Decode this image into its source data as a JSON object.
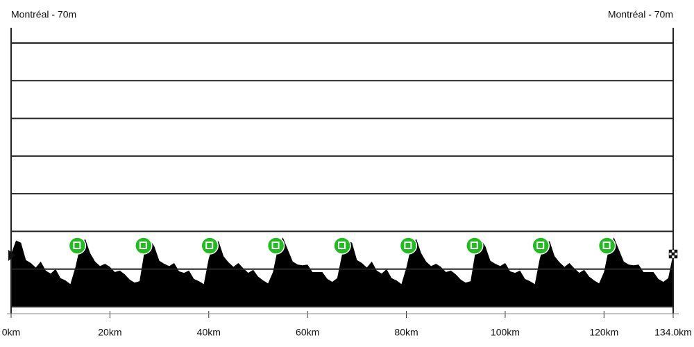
{
  "chart_data": {
    "type": "area",
    "title_left": "Montréal - 70m",
    "title_right": "Montréal - 70m",
    "color": "#000000",
    "marker_color": "#22bb22",
    "x": [
      0,
      1,
      2,
      3,
      4,
      5,
      6,
      7,
      8,
      9,
      10,
      11,
      12,
      13,
      14,
      15,
      16,
      17,
      18,
      19,
      20,
      21,
      22,
      23,
      24,
      25,
      26,
      27,
      28,
      29,
      30,
      31,
      32,
      33,
      34,
      35,
      36,
      37,
      38,
      39,
      40,
      41,
      42,
      43,
      44,
      45,
      46,
      47,
      48,
      49,
      50,
      51,
      52,
      53,
      54,
      55,
      56,
      57,
      58,
      59,
      60,
      61,
      62,
      63,
      64,
      65,
      66,
      67,
      68,
      69,
      70,
      71,
      72,
      73,
      74,
      75,
      76,
      77,
      78,
      79,
      80,
      81,
      82,
      83,
      84,
      85,
      86,
      87,
      88,
      89,
      90,
      91,
      92,
      93,
      94,
      95,
      96,
      97,
      98,
      99,
      100,
      101,
      102,
      103,
      104,
      105,
      106,
      107,
      108,
      109,
      110,
      111,
      112,
      113,
      114,
      115,
      116,
      117,
      118,
      119,
      120,
      121,
      122,
      123,
      124,
      125,
      126,
      127,
      128,
      129,
      130,
      131,
      132,
      133,
      134
    ],
    "values": [
      70,
      88,
      85,
      62,
      58,
      52,
      60,
      48,
      44,
      50,
      38,
      35,
      30,
      52,
      81,
      90,
      71,
      60,
      54,
      57,
      53,
      46,
      48,
      43,
      36,
      32,
      34,
      74,
      90,
      80,
      61,
      57,
      54,
      58,
      47,
      45,
      48,
      37,
      34,
      30,
      64,
      85,
      87,
      67,
      59,
      53,
      58,
      51,
      45,
      49,
      40,
      35,
      31,
      46,
      78,
      92,
      76,
      60,
      56,
      55,
      56,
      46,
      46,
      46,
      37,
      33,
      38,
      70,
      88,
      85,
      62,
      58,
      52,
      60,
      48,
      44,
      50,
      38,
      35,
      30,
      52,
      81,
      90,
      71,
      60,
      54,
      57,
      53,
      46,
      48,
      43,
      36,
      32,
      34,
      74,
      90,
      80,
      61,
      57,
      54,
      58,
      47,
      45,
      48,
      37,
      34,
      30,
      64,
      85,
      87,
      67,
      59,
      53,
      58,
      51,
      45,
      49,
      40,
      35,
      31,
      46,
      78,
      92,
      76,
      60,
      56,
      55,
      56,
      46,
      46,
      46,
      37,
      33,
      38,
      70
    ],
    "lap_markers": [
      13.4,
      26.8,
      40.2,
      53.6,
      67.0,
      80.4,
      93.8,
      107.2,
      120.6
    ],
    "xlim": [
      0,
      134
    ],
    "xticks": [
      {
        "value": 0,
        "label": "0km"
      },
      {
        "value": 20,
        "label": "20km"
      },
      {
        "value": 40,
        "label": "40km"
      },
      {
        "value": 60,
        "label": "60km"
      },
      {
        "value": 80,
        "label": "80km"
      },
      {
        "value": 100,
        "label": "100km"
      },
      {
        "value": 120,
        "label": "120km"
      },
      {
        "value": 134,
        "label": "134.0km"
      }
    ],
    "ylim": [
      0,
      350
    ],
    "yticks": [
      0,
      50,
      100,
      150,
      200,
      250,
      300,
      350
    ],
    "grid": true
  }
}
